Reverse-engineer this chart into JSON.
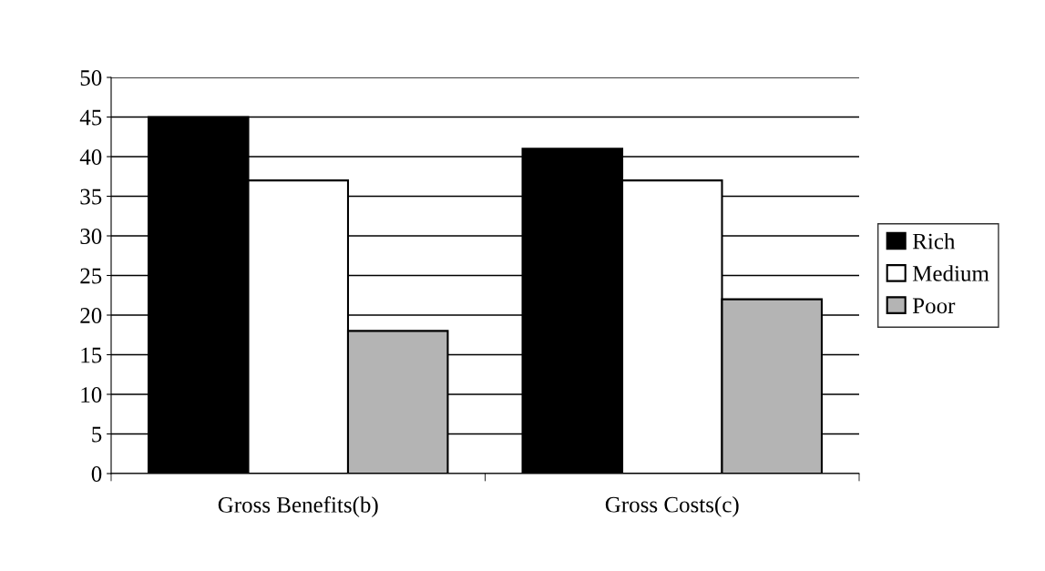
{
  "chart_data": {
    "type": "bar",
    "categories": [
      "Gross Benefits(b)",
      "Gross Costs(c)"
    ],
    "series": [
      {
        "name": "Rich",
        "color": "#000000",
        "values": [
          45,
          41
        ]
      },
      {
        "name": "Medium",
        "color": "#ffffff",
        "values": [
          37,
          37
        ]
      },
      {
        "name": "Poor",
        "color": "#b4b4b4",
        "values": [
          18,
          22
        ]
      }
    ],
    "ylim": [
      0,
      50
    ],
    "yticks": [
      0,
      5,
      10,
      15,
      20,
      25,
      30,
      35,
      40,
      45,
      50
    ],
    "grid": "y",
    "legend": "right"
  }
}
